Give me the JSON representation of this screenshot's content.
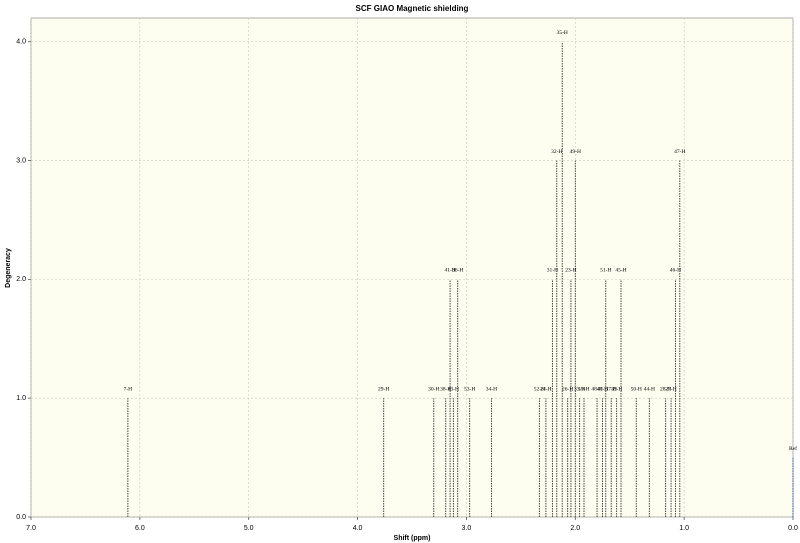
{
  "chart_data": {
    "type": "stem",
    "title": "SCF GIAO Magnetic shielding",
    "x_label": "Shift (ppm)",
    "y_label": "Degeneracy",
    "xlim": [
      7,
      0
    ],
    "ylim": [
      0,
      4.2
    ],
    "xticks": [
      {
        "value": 7,
        "label": "7.0"
      },
      {
        "value": 6,
        "label": "6.0"
      },
      {
        "value": 5,
        "label": "5.0"
      },
      {
        "value": 4,
        "label": "4.0"
      },
      {
        "value": 3,
        "label": "3.0"
      },
      {
        "value": 2,
        "label": "2.0"
      },
      {
        "value": 1,
        "label": "1.0"
      },
      {
        "value": 0,
        "label": "0.0"
      }
    ],
    "yticks": [
      {
        "value": 0,
        "label": "0.0"
      },
      {
        "value": 1,
        "label": "1.0"
      },
      {
        "value": 2,
        "label": "2.0"
      },
      {
        "value": 3,
        "label": "3.0"
      },
      {
        "value": 4,
        "label": "4.0"
      }
    ],
    "grid": true,
    "series": [
      {
        "name": "H",
        "color": "#333333",
        "x": [
          6.11,
          3.76,
          3.3,
          3.19,
          3.15,
          3.12,
          3.08,
          2.97,
          2.77,
          2.33,
          2.27,
          2.21,
          2.17,
          2.12,
          2.07,
          2.04,
          2.0,
          1.96,
          1.92,
          1.8,
          1.75,
          1.72,
          1.67,
          1.62,
          1.58,
          1.44,
          1.32,
          1.17,
          1.12,
          1.08,
          1.04
        ],
        "values": [
          1,
          1,
          1,
          1,
          2,
          1,
          2,
          1,
          1,
          1,
          1,
          2,
          3,
          4,
          1,
          2,
          3,
          1,
          1,
          1,
          1,
          2,
          1,
          1,
          2,
          1,
          1,
          1,
          1,
          2,
          3
        ],
        "labels": [
          "7-H",
          "29-H",
          "30-H",
          "38-H",
          "41-H",
          "43-H",
          "36-H",
          "53-H",
          "34-H",
          "52-H",
          "24-H",
          "31-H",
          "32-H",
          "35-H",
          "26-H",
          "23-H",
          "49-H",
          "33-H",
          "19-H",
          "48-H",
          "40-H",
          "51-H",
          "37-H",
          "39-H",
          "45-H",
          "50-H",
          "44-H",
          "28-H",
          "27-H",
          "46-H",
          "47-H"
        ]
      },
      {
        "name": "Ref",
        "color": "#3344cc",
        "x": [
          0
        ],
        "values": [
          0.5
        ],
        "labels": [
          "Ref"
        ]
      }
    ]
  }
}
